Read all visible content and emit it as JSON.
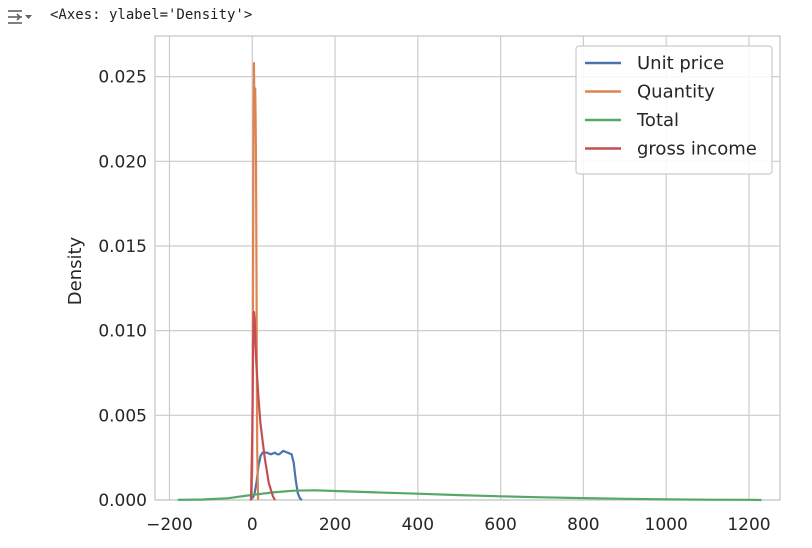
{
  "output": {
    "text": "<Axes: ylabel='Density'>",
    "icon": "output-toggle-icon"
  },
  "chart_data": {
    "type": "line",
    "title": "",
    "xlabel": "",
    "ylabel": "Density",
    "xlim": [
      -235,
      1275
    ],
    "ylim": [
      0,
      0.0274
    ],
    "x_ticks": [
      -200,
      0,
      200,
      400,
      600,
      800,
      1000,
      1200
    ],
    "y_ticks": [
      0.0,
      0.005,
      0.01,
      0.015,
      0.02,
      0.025
    ],
    "y_tick_labels": [
      "0.000",
      "0.005",
      "0.010",
      "0.015",
      "0.020",
      "0.025"
    ],
    "grid": true,
    "legend_position": "top-right",
    "series": [
      {
        "name": "Unit price",
        "color": "#4c72b0",
        "points": [
          [
            -5,
            0
          ],
          [
            0,
            0.0001
          ],
          [
            5,
            0.0003
          ],
          [
            10,
            0.001
          ],
          [
            15,
            0.002
          ],
          [
            20,
            0.0026
          ],
          [
            25,
            0.0028
          ],
          [
            35,
            0.0028
          ],
          [
            45,
            0.0027
          ],
          [
            55,
            0.0028
          ],
          [
            60,
            0.0027
          ],
          [
            65,
            0.0027
          ],
          [
            75,
            0.0029
          ],
          [
            85,
            0.0028
          ],
          [
            95,
            0.0027
          ],
          [
            100,
            0.0022
          ],
          [
            105,
            0.0012
          ],
          [
            110,
            0.0004
          ],
          [
            115,
            0.0001
          ],
          [
            120,
            0
          ]
        ]
      },
      {
        "name": "Quantity",
        "color": "#dd8452",
        "points": [
          [
            -2,
            0
          ],
          [
            0,
            0.002
          ],
          [
            1,
            0.007
          ],
          [
            2,
            0.015
          ],
          [
            3,
            0.0225
          ],
          [
            4,
            0.0258
          ],
          [
            5,
            0.024
          ],
          [
            6,
            0.0235
          ],
          [
            7,
            0.0243
          ],
          [
            8,
            0.0225
          ],
          [
            9,
            0.02
          ],
          [
            10,
            0.015
          ],
          [
            11,
            0.008
          ],
          [
            12,
            0.003
          ],
          [
            14,
            0
          ]
        ]
      },
      {
        "name": "Total",
        "color": "#55a868",
        "points": [
          [
            -180,
            1e-05
          ],
          [
            -120,
            3e-05
          ],
          [
            -60,
            0.0001
          ],
          [
            0,
            0.0003
          ],
          [
            50,
            0.00045
          ],
          [
            100,
            0.00055
          ],
          [
            150,
            0.00057
          ],
          [
            200,
            0.00053
          ],
          [
            300,
            0.00045
          ],
          [
            400,
            0.00037
          ],
          [
            500,
            0.00029
          ],
          [
            600,
            0.00022
          ],
          [
            700,
            0.00016
          ],
          [
            800,
            0.00011
          ],
          [
            900,
            7e-05
          ],
          [
            1000,
            4e-05
          ],
          [
            1100,
            2e-05
          ],
          [
            1200,
            1e-05
          ],
          [
            1230,
            0
          ]
        ]
      },
      {
        "name": "gross income",
        "color": "#c44e52",
        "points": [
          [
            -3,
            0
          ],
          [
            0,
            0.004
          ],
          [
            2,
            0.009
          ],
          [
            4,
            0.0111
          ],
          [
            6,
            0.0105
          ],
          [
            8,
            0.009
          ],
          [
            10,
            0.008
          ],
          [
            15,
            0.006
          ],
          [
            20,
            0.0045
          ],
          [
            30,
            0.0025
          ],
          [
            40,
            0.001
          ],
          [
            50,
            0.0002
          ],
          [
            55,
            0
          ]
        ]
      }
    ]
  }
}
